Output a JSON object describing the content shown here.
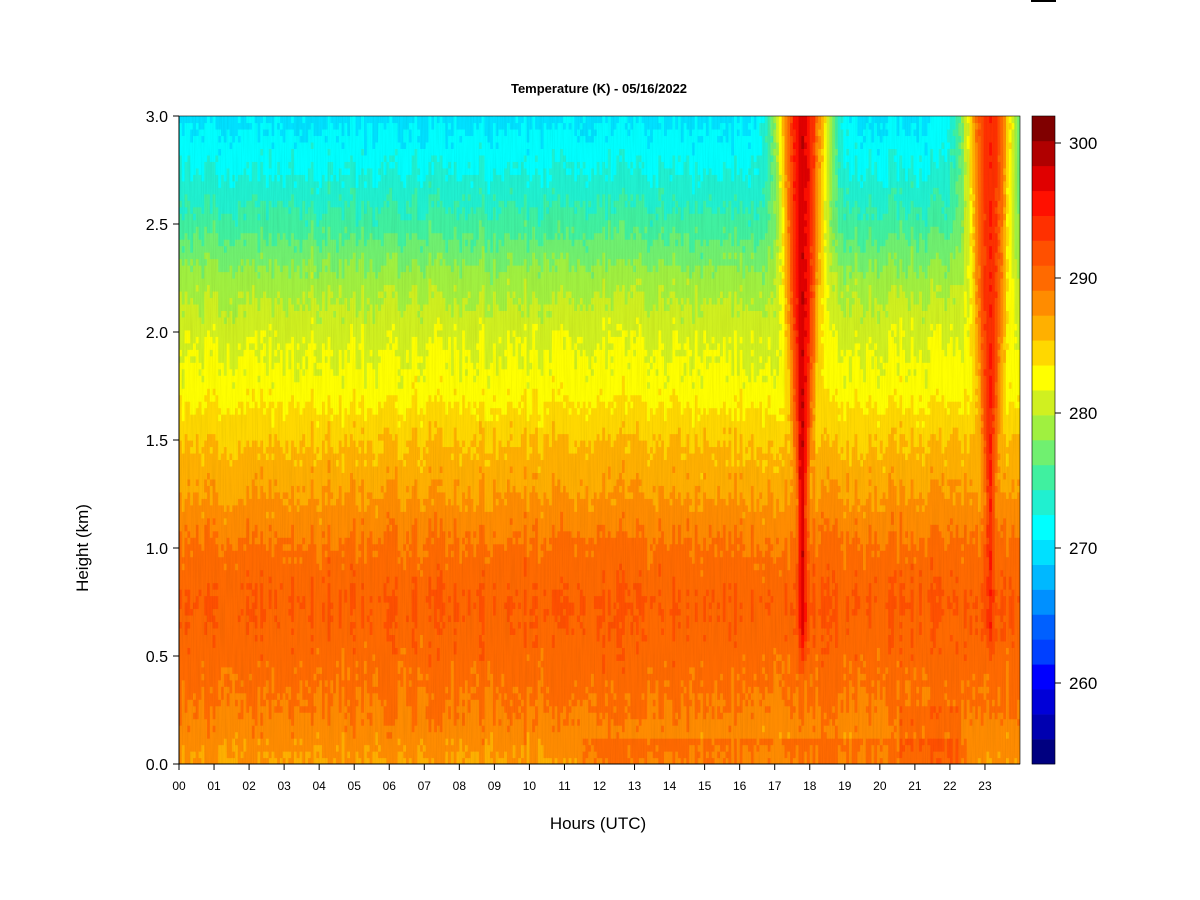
{
  "chart_data": {
    "type": "heatmap",
    "title": "Temperature (K) - 05/16/2022",
    "xlabel": "Hours (UTC)",
    "ylabel": "Height (km)",
    "xlim": [
      0,
      24
    ],
    "ylim": [
      0.0,
      3.0
    ],
    "x_ticks": [
      "00",
      "01",
      "02",
      "03",
      "04",
      "05",
      "06",
      "07",
      "08",
      "09",
      "10",
      "11",
      "12",
      "13",
      "14",
      "15",
      "16",
      "17",
      "18",
      "19",
      "20",
      "21",
      "22",
      "23"
    ],
    "y_ticks": [
      "0.0",
      "0.5",
      "1.0",
      "1.5",
      "2.0",
      "2.5",
      "3.0"
    ],
    "heights_km": [
      0.0,
      0.25,
      0.5,
      0.75,
      1.0,
      1.25,
      1.5,
      1.75,
      2.0,
      2.25,
      2.5,
      2.75,
      3.0
    ],
    "temperature_profile_K": [
      290,
      292,
      293,
      294,
      292.5,
      290,
      288,
      285,
      283.5,
      281,
      277,
      274,
      271.5
    ],
    "warm_events": [
      {
        "hour": 17.75,
        "peak_K": 301,
        "height_range_km": [
          0.5,
          3.0
        ]
      },
      {
        "hour": 23.1,
        "peak_K": 298,
        "height_range_km": [
          0.5,
          3.0
        ]
      }
    ],
    "colorbar": {
      "min": 254,
      "max": 302,
      "step": 2,
      "ticks": [
        "260",
        "270",
        "280",
        "290",
        "300"
      ],
      "colors": [
        "#000080",
        "#0000b0",
        "#0000d8",
        "#0000ff",
        "#0040ff",
        "#0060ff",
        "#0090ff",
        "#00b8ff",
        "#00e0ff",
        "#00ffff",
        "#20f0d0",
        "#40f0a0",
        "#70f070",
        "#a0f040",
        "#d0f020",
        "#ffff00",
        "#ffd800",
        "#ffb000",
        "#ff8c00",
        "#ff6a00",
        "#ff5000",
        "#ff3000",
        "#ff1000",
        "#e00000",
        "#b00000",
        "#800000"
      ]
    },
    "legend": "right"
  }
}
